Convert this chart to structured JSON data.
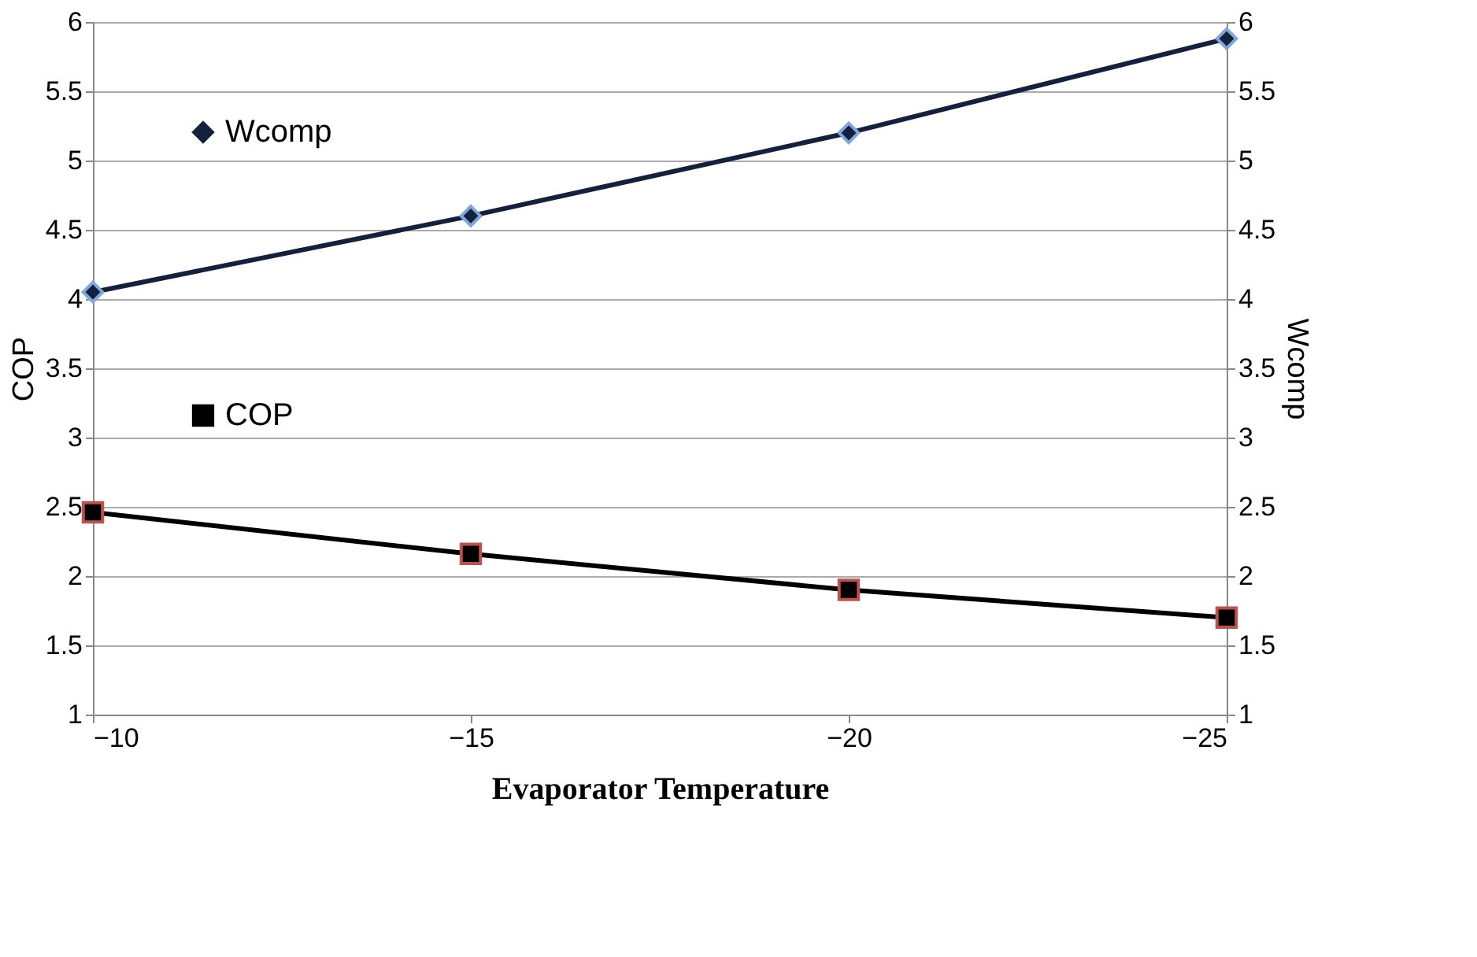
{
  "chart_data": {
    "type": "line",
    "xlabel": "Evaporator Temperature",
    "ylabel": "COP",
    "y2label": "Wcomp",
    "x": [
      -10,
      -15,
      -20,
      -25
    ],
    "xlim": [
      -10,
      -25
    ],
    "xticks": [
      -10,
      -15,
      -20,
      -25
    ],
    "ylim": [
      1,
      6
    ],
    "yticks": [
      1,
      1.5,
      2,
      2.5,
      3,
      3.5,
      4,
      4.5,
      5,
      5.5,
      6
    ],
    "y2lim": [
      1,
      6
    ],
    "y2ticks": [
      1,
      1.5,
      2,
      2.5,
      3,
      3.5,
      4,
      4.5,
      5,
      5.5,
      6
    ],
    "grid": "y",
    "legend": "top left",
    "line_style": "solid",
    "series": [
      {
        "name": "Wcomp",
        "color": "#14213d",
        "marker": "diamond",
        "axis": "y2",
        "values": [
          4.05,
          4.6,
          5.2,
          5.88
        ]
      },
      {
        "name": "COP",
        "color": "#000000",
        "marker": "square",
        "values": [
          2.46,
          2.16,
          1.9,
          1.7
        ]
      }
    ]
  }
}
